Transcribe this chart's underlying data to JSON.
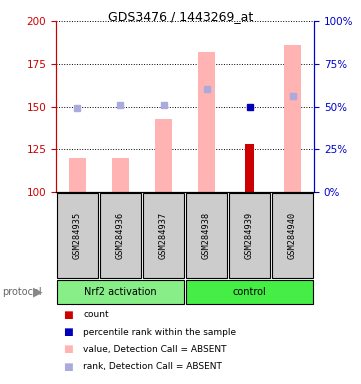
{
  "title": "GDS3476 / 1443269_at",
  "samples": [
    "GSM284935",
    "GSM284936",
    "GSM284937",
    "GSM284938",
    "GSM284939",
    "GSM284940"
  ],
  "ylim_left": [
    100,
    200
  ],
  "ylim_right": [
    0,
    100
  ],
  "yticks_left": [
    100,
    125,
    150,
    175,
    200
  ],
  "yticks_right": [
    0,
    25,
    50,
    75,
    100
  ],
  "pink_bar_values": [
    120,
    120,
    143,
    182,
    100,
    186
  ],
  "blue_square_values": [
    149,
    151,
    151,
    160,
    150,
    156
  ],
  "count_bar_values": [
    null,
    null,
    null,
    null,
    128,
    null
  ],
  "count_bar_color": "#cc0000",
  "pink_bar_color": "#ffb3b3",
  "blue_square_light_color": "#aaaadd",
  "blue_square_dark_color": "#0000bb",
  "blue_square_dark_index": 4,
  "left_axis_color": "#cc0000",
  "right_axis_color": "#0000cc",
  "group_nrf2_color": "#88ee88",
  "group_control_color": "#44ee44",
  "sample_box_color": "#cccccc",
  "legend_items": [
    {
      "color": "#cc0000",
      "label": "count"
    },
    {
      "color": "#0000bb",
      "label": "percentile rank within the sample"
    },
    {
      "color": "#ffb3b3",
      "label": "value, Detection Call = ABSENT"
    },
    {
      "color": "#aaaadd",
      "label": "rank, Detection Call = ABSENT"
    }
  ]
}
